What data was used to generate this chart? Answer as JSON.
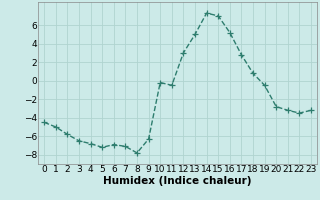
{
  "x": [
    0,
    1,
    2,
    3,
    4,
    5,
    6,
    7,
    8,
    9,
    10,
    11,
    12,
    13,
    14,
    15,
    16,
    17,
    18,
    19,
    20,
    21,
    22,
    23
  ],
  "y": [
    -4.5,
    -5.0,
    -5.8,
    -6.5,
    -6.8,
    -7.2,
    -6.9,
    -7.1,
    -7.8,
    -6.3,
    -0.2,
    -0.5,
    3.0,
    5.0,
    7.3,
    7.0,
    5.2,
    2.8,
    0.8,
    -0.5,
    -2.8,
    -3.2,
    -3.5,
    -3.2
  ],
  "line_color": "#2e7d6e",
  "marker": "+",
  "marker_size": 4,
  "linewidth": 1.0,
  "bg_color": "#cceae8",
  "grid_color": "#b0d4d0",
  "xlabel": "Humidex (Indice chaleur)",
  "ylim": [
    -9,
    8.5
  ],
  "xlim": [
    -0.5,
    23.5
  ],
  "yticks": [
    -8,
    -6,
    -4,
    -2,
    0,
    2,
    4,
    6
  ],
  "xticks": [
    0,
    1,
    2,
    3,
    4,
    5,
    6,
    7,
    8,
    9,
    10,
    11,
    12,
    13,
    14,
    15,
    16,
    17,
    18,
    19,
    20,
    21,
    22,
    23
  ],
  "xlabel_fontsize": 7.5,
  "tick_fontsize": 6.5
}
